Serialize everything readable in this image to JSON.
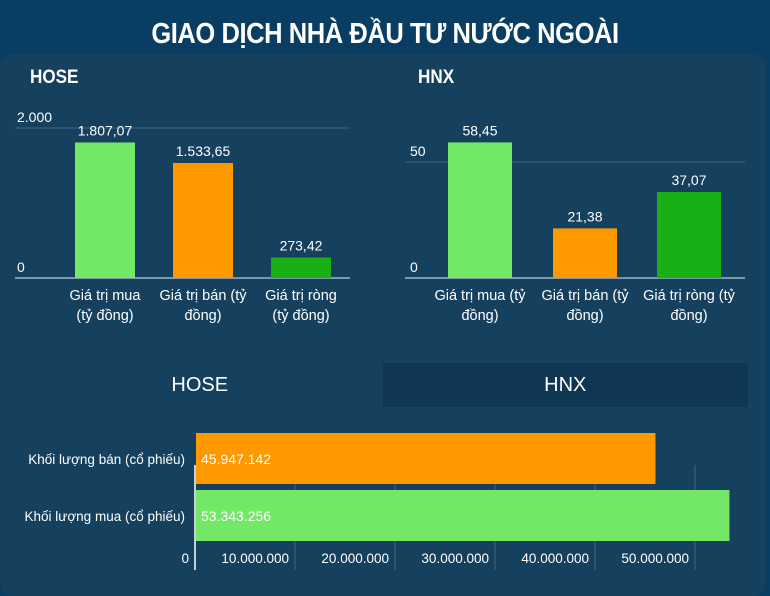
{
  "title": "GIAO DỊCH NHÀ ĐẦU TƯ NƯỚC NGOÀI",
  "tabs": [
    "HOSE",
    "HNX"
  ],
  "colors": {
    "buy": "#72e866",
    "sell": "#ff9900",
    "net": "#19b015"
  },
  "chart_data": [
    {
      "type": "bar",
      "title": "HOSE",
      "categories": [
        "Giá trị mua (tỷ đồng)",
        "Giá trị bán (tỷ đồng)",
        "Giá trị ròng (tỷ đồng)"
      ],
      "category_lines": [
        [
          "Giá trị mua",
          "(tỷ đồng)"
        ],
        [
          "Giá trị bán (tỷ",
          "đồng)"
        ],
        [
          "Giá trị ròng",
          "(tỷ đồng)"
        ]
      ],
      "values": [
        1807.07,
        1533.65,
        273.42
      ],
      "value_labels": [
        "1.807,07",
        "1.533,65",
        "273,42"
      ],
      "yticks": [
        0,
        2000
      ],
      "ytick_labels": [
        "0",
        "2.000"
      ],
      "ylim": [
        0,
        2000
      ]
    },
    {
      "type": "bar",
      "title": "HNX",
      "categories": [
        "Giá trị mua (tỷ đồng)",
        "Giá trị bán (tỷ đồng)",
        "Giá trị ròng (tỷ đồng)"
      ],
      "category_lines": [
        [
          "Giá trị mua (tỷ",
          "đồng)"
        ],
        [
          "Giá trị bán (tỷ",
          "đồng)"
        ],
        [
          "Giá trị ròng (tỷ",
          "đồng)"
        ]
      ],
      "values": [
        58.45,
        21.38,
        37.07
      ],
      "value_labels": [
        "58,45",
        "21,38",
        "37,07"
      ],
      "yticks": [
        0,
        50
      ],
      "ytick_labels": [
        "0",
        "50"
      ],
      "ylim": [
        0,
        50
      ]
    },
    {
      "type": "bar",
      "orientation": "horizontal",
      "title": "HOSE",
      "categories": [
        "Khối lượng bán (cổ phiếu)",
        "Khối lượng mua (cổ phiếu)"
      ],
      "values": [
        45947142,
        53343256
      ],
      "value_labels": [
        "45.947.142",
        "53.343.256"
      ],
      "xticks": [
        0,
        10000000,
        20000000,
        30000000,
        40000000,
        50000000
      ],
      "xtick_labels": [
        "0",
        "10.000.000",
        "20.000.000",
        "30.000.000",
        "40.000.000",
        "50.000.000"
      ],
      "xlim": [
        0,
        54000000
      ]
    }
  ]
}
